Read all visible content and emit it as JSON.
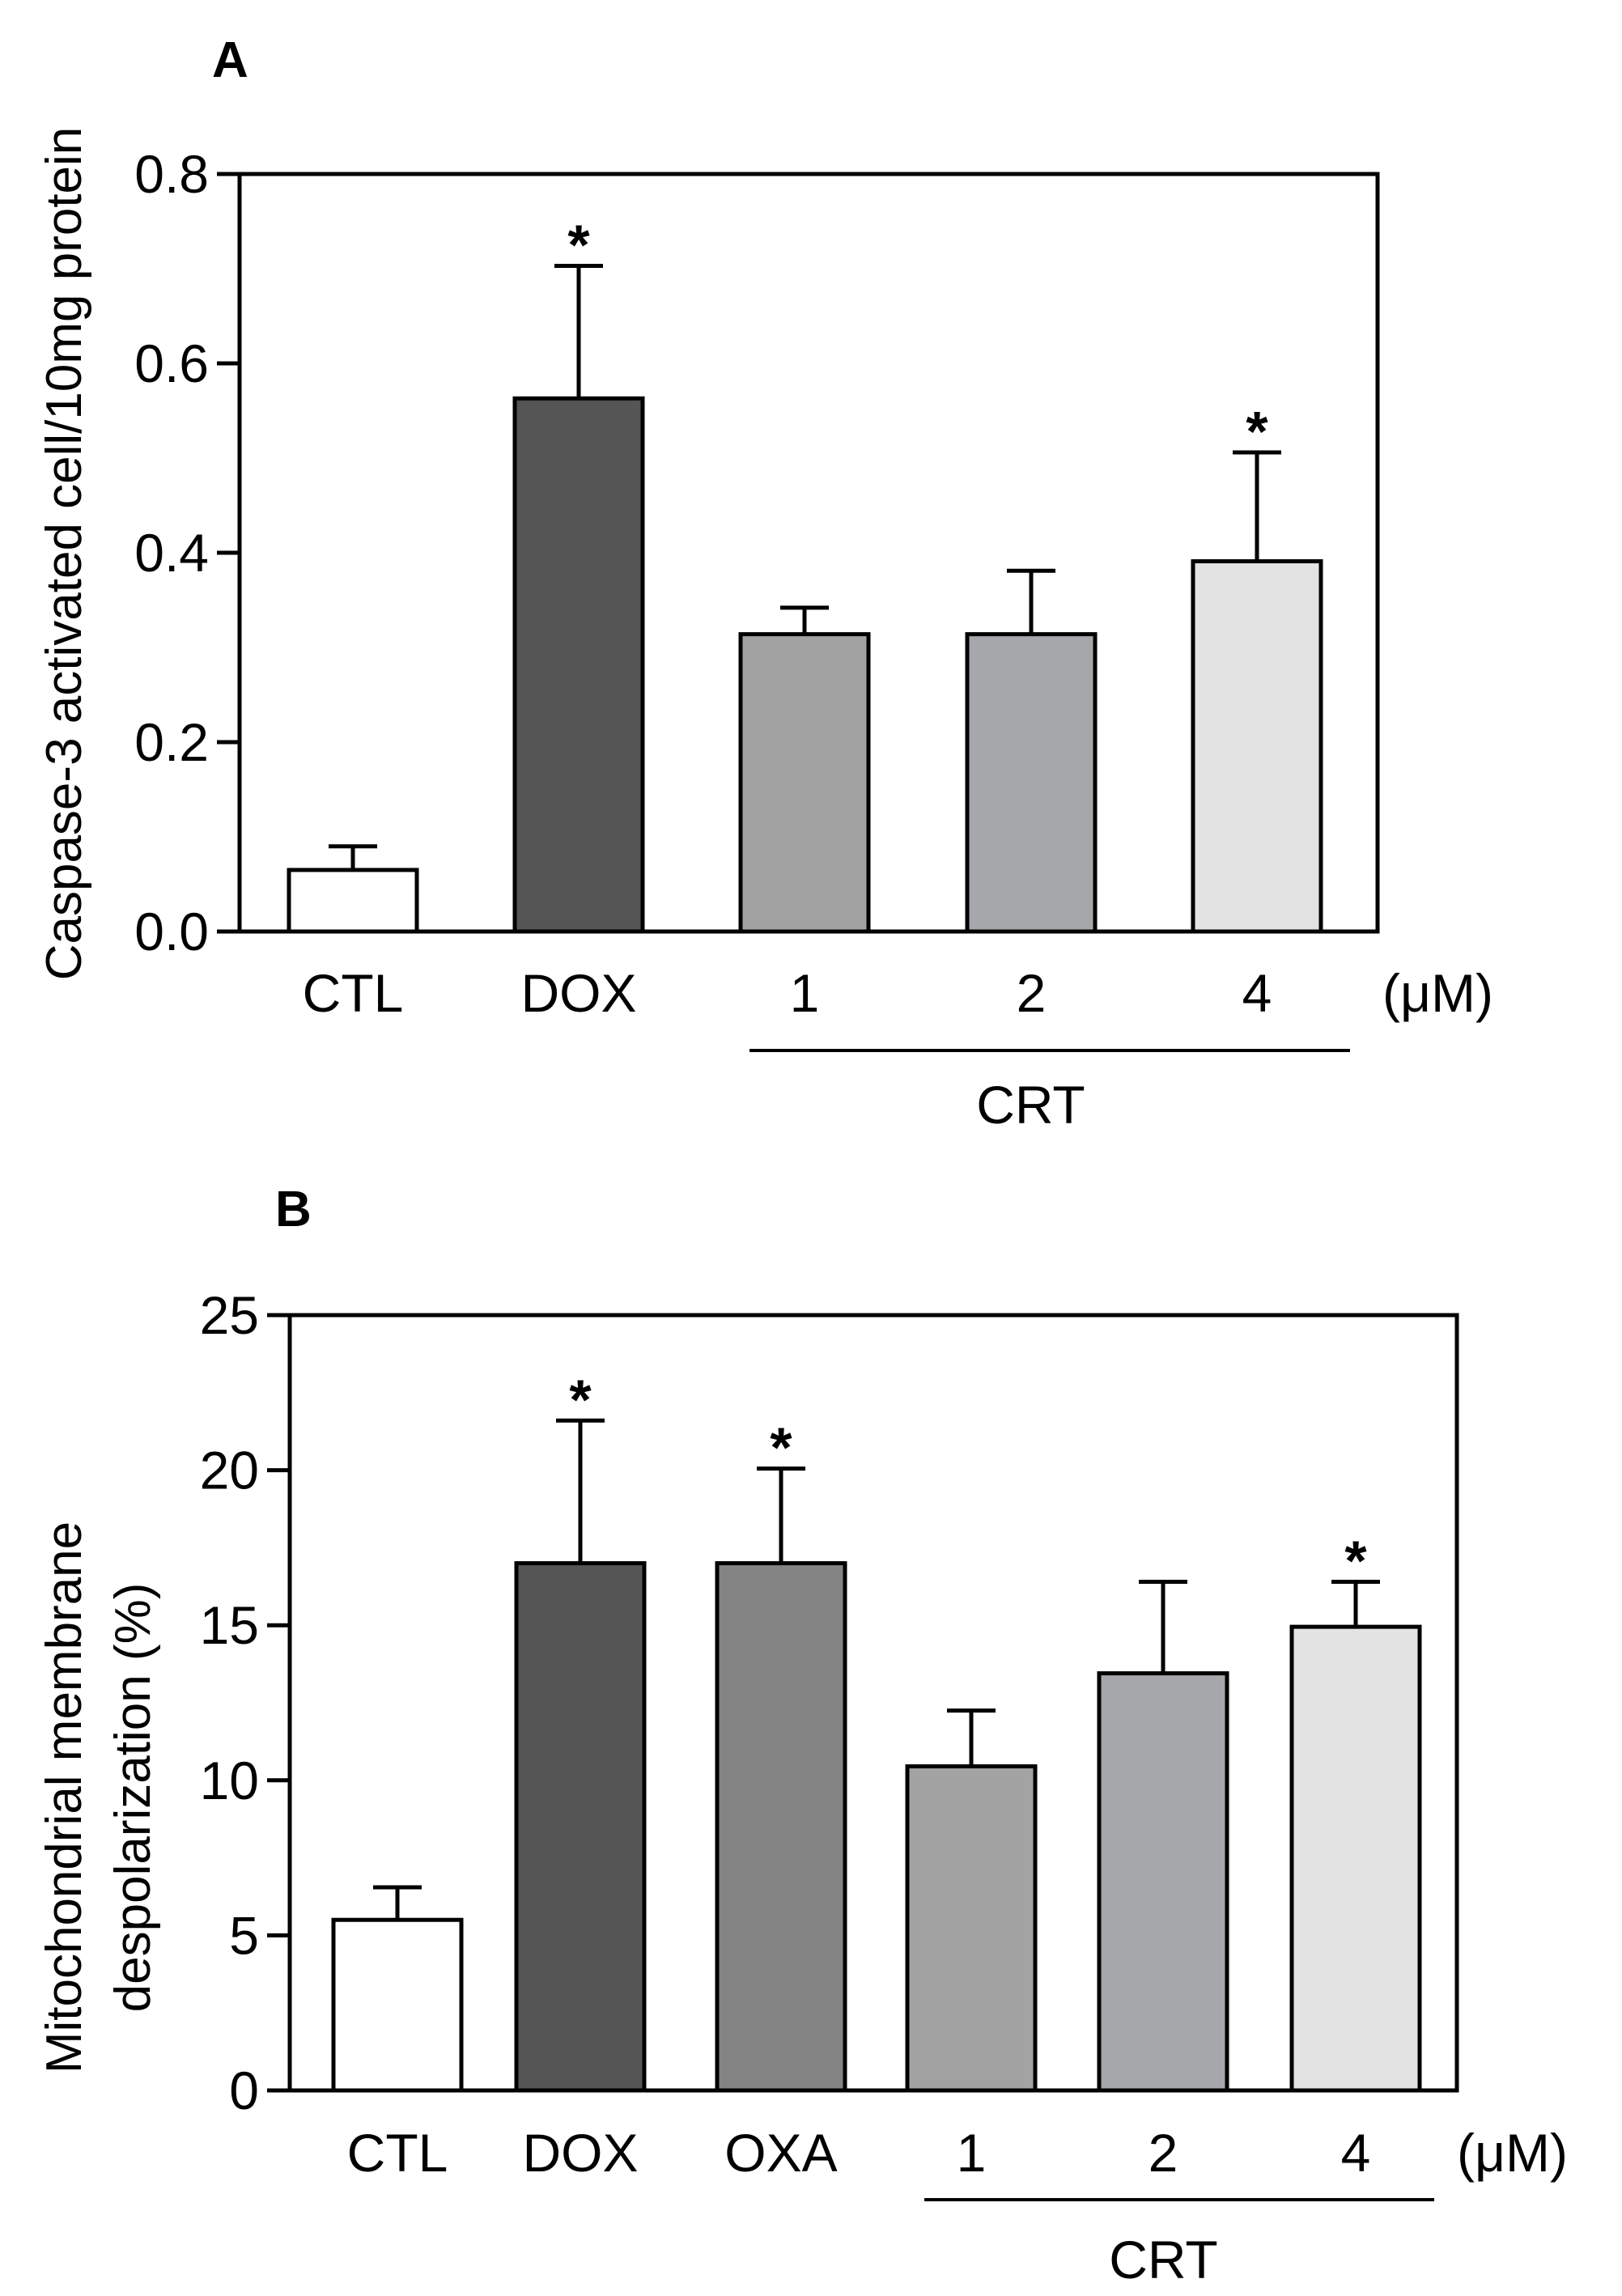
{
  "chart_data": [
    {
      "panel": "A",
      "type": "bar",
      "ylabel": "Caspase-3 activated cell/10mg protein",
      "ylim": [
        0,
        0.8
      ],
      "yticks": [
        {
          "v": 0.0,
          "label": "0.0"
        },
        {
          "v": 0.2,
          "label": "0.2"
        },
        {
          "v": 0.4,
          "label": "0.4"
        },
        {
          "v": 0.6,
          "label": "0.6"
        },
        {
          "v": 0.8,
          "label": "0.8"
        }
      ],
      "categories": [
        "CTL",
        "DOX",
        "1",
        "2",
        "4"
      ],
      "values": [
        0.065,
        0.563,
        0.314,
        0.314,
        0.391
      ],
      "errors": [
        0.025,
        0.14,
        0.028,
        0.067,
        0.115
      ],
      "significant": [
        false,
        true,
        false,
        false,
        true
      ],
      "significance_marker": "*",
      "colors": [
        "#ffffff",
        "#555555",
        "#a3a3a3",
        "#a6a7aa",
        "#e3e3e3"
      ],
      "unit_label": "(μM)",
      "group_label": "CRT",
      "group_start": 2,
      "group_end": 4
    },
    {
      "panel": "B",
      "type": "bar",
      "ylabel_lines": [
        "Mitochondrial membrane",
        "despolarization (%)"
      ],
      "ylim": [
        0,
        25
      ],
      "yticks": [
        {
          "v": 0,
          "label": "0"
        },
        {
          "v": 5,
          "label": "5"
        },
        {
          "v": 10,
          "label": "10"
        },
        {
          "v": 15,
          "label": "15"
        },
        {
          "v": 20,
          "label": "20"
        },
        {
          "v": 25,
          "label": "25"
        }
      ],
      "categories": [
        "CTL",
        "DOX",
        "OXA",
        "1",
        "2",
        "4"
      ],
      "values": [
        5.5,
        17.0,
        17.0,
        10.45,
        13.45,
        14.95
      ],
      "errors": [
        1.05,
        4.6,
        3.05,
        1.8,
        2.95,
        1.45
      ],
      "significant": [
        false,
        true,
        true,
        false,
        false,
        true
      ],
      "significance_marker": "*",
      "colors": [
        "#ffffff",
        "#555555",
        "#848484",
        "#a3a3a3",
        "#a6a7aa",
        "#e3e3e3"
      ],
      "unit_label": "(μM)",
      "group_label": "CRT",
      "group_start": 3,
      "group_end": 5
    }
  ]
}
